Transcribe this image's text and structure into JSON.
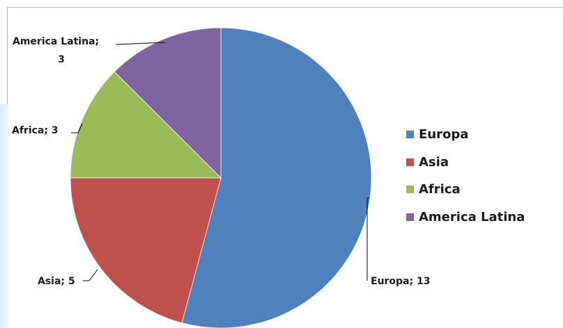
{
  "chart_data": {
    "type": "pie",
    "title": "",
    "categories": [
      "Europa",
      "Asia",
      "Africa",
      "America Latina"
    ],
    "values": [
      13,
      5,
      3,
      3
    ],
    "colors": [
      "#4f81bd",
      "#c0504d",
      "#9bbb59",
      "#8064a2"
    ],
    "data_labels": {
      "europa": [
        "Europa; 13"
      ],
      "asia": [
        "Asia; 5"
      ],
      "africa": [
        "Africa; 3"
      ],
      "america_latina": [
        "America Latina;",
        "3"
      ]
    },
    "legend": {
      "placement": "right",
      "entries": [
        "Europa",
        "Asia",
        "Africa",
        "America Latina"
      ]
    }
  }
}
